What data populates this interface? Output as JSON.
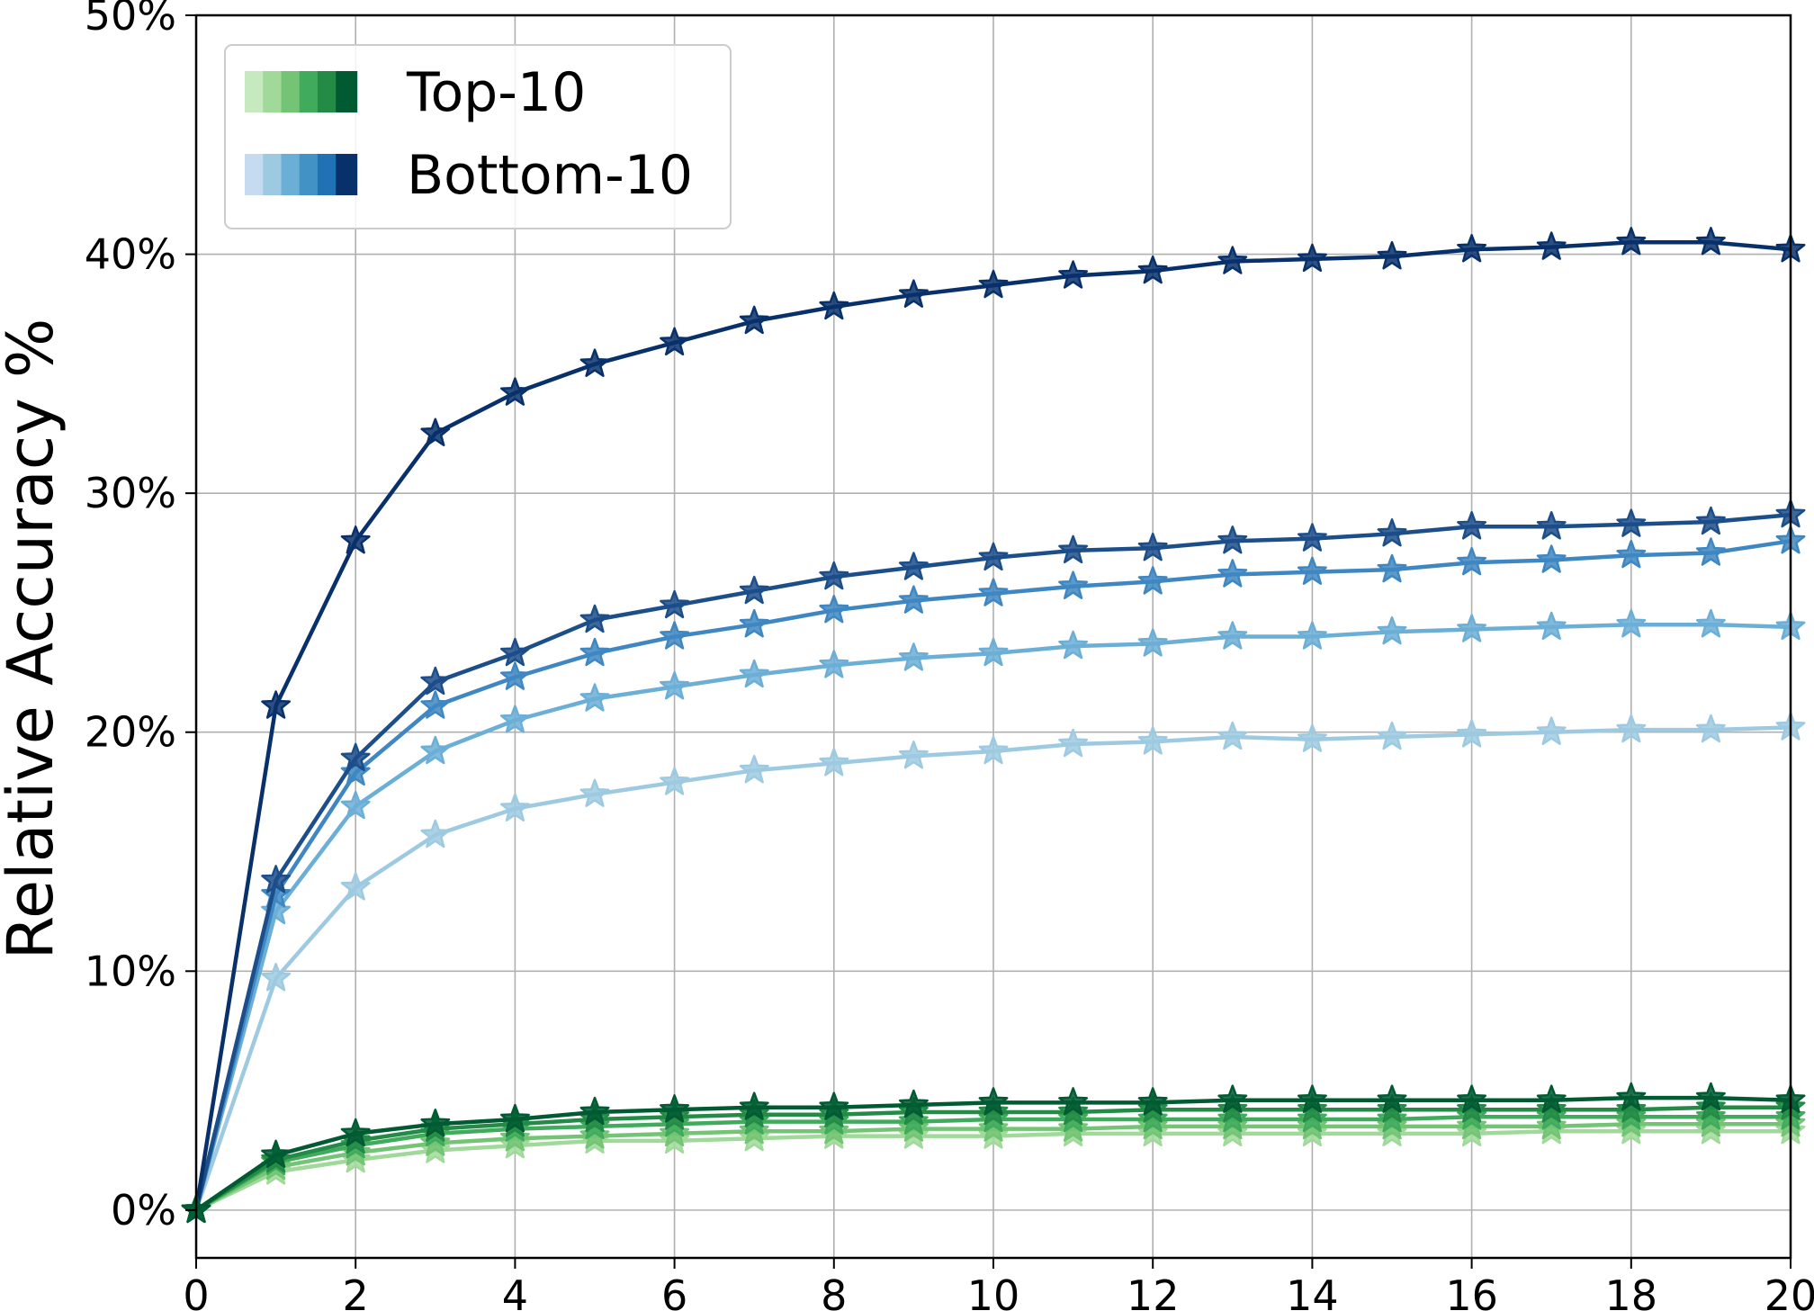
{
  "chart_data": {
    "type": "line",
    "ylabel": "Relative Accuracy %",
    "xlim": [
      0,
      20
    ],
    "ylim": [
      -2,
      50
    ],
    "x_ticks": [
      "0",
      "2",
      "4",
      "6",
      "8",
      "10",
      "12",
      "14",
      "16",
      "18",
      "20"
    ],
    "y_ticks": [
      "0%",
      "10%",
      "20%",
      "30%",
      "40%",
      "50%"
    ],
    "grid": true,
    "legend_position": "top-left",
    "legend": [
      {
        "label": "Top-10",
        "colors": [
          "#c7e9c0",
          "#a1d99b",
          "#74c476",
          "#41ab5d",
          "#238b45",
          "#005a32"
        ]
      },
      {
        "label": "Bottom-10",
        "colors": [
          "#c6dbef",
          "#9ecae1",
          "#6baed6",
          "#4292c6",
          "#2171b5",
          "#08306b"
        ]
      }
    ],
    "marker": "star",
    "x": [
      0,
      1,
      2,
      3,
      4,
      5,
      6,
      7,
      8,
      9,
      10,
      11,
      12,
      13,
      14,
      15,
      16,
      17,
      18,
      19,
      20
    ],
    "series": [
      {
        "group": "Bottom-10",
        "color": "#9ecae1",
        "values": [
          0,
          9.7,
          13.5,
          15.7,
          16.8,
          17.4,
          17.9,
          18.4,
          18.7,
          19.0,
          19.2,
          19.5,
          19.6,
          19.8,
          19.7,
          19.8,
          19.9,
          20.0,
          20.1,
          20.1,
          20.2
        ]
      },
      {
        "group": "Bottom-10",
        "color": "#6baed6",
        "values": [
          0,
          12.5,
          16.9,
          19.2,
          20.5,
          21.4,
          21.9,
          22.4,
          22.8,
          23.1,
          23.3,
          23.6,
          23.7,
          24.0,
          24.0,
          24.2,
          24.3,
          24.4,
          24.5,
          24.5,
          24.4
        ]
      },
      {
        "group": "Bottom-10",
        "color": "#3f87c2",
        "values": [
          0,
          13.2,
          18.3,
          21.1,
          22.3,
          23.3,
          24.0,
          24.5,
          25.1,
          25.5,
          25.8,
          26.1,
          26.3,
          26.6,
          26.7,
          26.8,
          27.1,
          27.2,
          27.4,
          27.5,
          28.0
        ]
      },
      {
        "group": "Bottom-10",
        "color": "#1c4e8a",
        "values": [
          0,
          13.8,
          18.9,
          22.1,
          23.3,
          24.7,
          25.3,
          25.9,
          26.5,
          26.9,
          27.3,
          27.6,
          27.7,
          28.0,
          28.1,
          28.3,
          28.6,
          28.6,
          28.7,
          28.8,
          29.1
        ]
      },
      {
        "group": "Bottom-10",
        "color": "#08306b",
        "values": [
          0,
          21.1,
          28.0,
          32.5,
          34.2,
          35.4,
          36.3,
          37.2,
          37.8,
          38.3,
          38.7,
          39.1,
          39.3,
          39.7,
          39.8,
          39.9,
          40.2,
          40.3,
          40.5,
          40.5,
          40.2
        ]
      },
      {
        "group": "Top-10",
        "color": "#a1d99b",
        "values": [
          0,
          1.6,
          2.1,
          2.5,
          2.7,
          2.9,
          2.9,
          3.0,
          3.1,
          3.1,
          3.1,
          3.2,
          3.2,
          3.2,
          3.2,
          3.2,
          3.2,
          3.3,
          3.3,
          3.3,
          3.3
        ]
      },
      {
        "group": "Top-10",
        "color": "#74c476",
        "values": [
          0,
          1.8,
          2.4,
          2.8,
          3.0,
          3.1,
          3.2,
          3.3,
          3.3,
          3.4,
          3.4,
          3.4,
          3.5,
          3.5,
          3.5,
          3.5,
          3.5,
          3.5,
          3.6,
          3.6,
          3.6
        ]
      },
      {
        "group": "Top-10",
        "color": "#41ab5d",
        "values": [
          0,
          2.0,
          2.7,
          3.2,
          3.4,
          3.5,
          3.6,
          3.7,
          3.7,
          3.7,
          3.8,
          3.8,
          3.8,
          3.8,
          3.8,
          3.8,
          3.9,
          3.9,
          3.9,
          3.9,
          3.9
        ]
      },
      {
        "group": "Top-10",
        "color": "#238b45",
        "values": [
          0,
          2.1,
          2.9,
          3.4,
          3.6,
          3.8,
          3.9,
          4.0,
          4.0,
          4.1,
          4.1,
          4.1,
          4.2,
          4.2,
          4.2,
          4.2,
          4.2,
          4.2,
          4.2,
          4.3,
          4.3
        ]
      },
      {
        "group": "Top-10",
        "color": "#005a32",
        "values": [
          0,
          2.3,
          3.2,
          3.6,
          3.8,
          4.1,
          4.2,
          4.3,
          4.3,
          4.4,
          4.5,
          4.5,
          4.5,
          4.6,
          4.6,
          4.6,
          4.6,
          4.6,
          4.7,
          4.7,
          4.6
        ]
      }
    ]
  }
}
